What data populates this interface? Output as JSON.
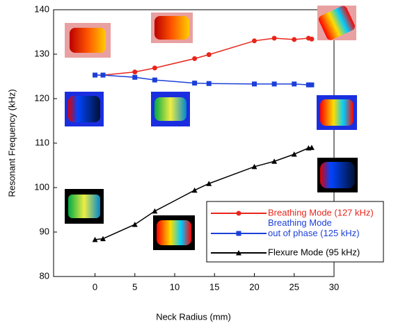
{
  "chart_data": {
    "type": "line",
    "x_label": "Neck Radius (mm)",
    "y_label": "Resonant Frequency (kHz)",
    "x": [
      0,
      1,
      5,
      7.5,
      12.5,
      14.3,
      20,
      22.5,
      25,
      26.8,
      27.2
    ],
    "series": [
      {
        "name": "Breathing Mode (127 kHz)",
        "color": "#e8251b",
        "marker": "circle",
        "values": [
          125.3,
          125.3,
          126,
          126.9,
          129,
          129.9,
          133,
          133.6,
          133.3,
          133.6,
          133.4
        ]
      },
      {
        "name": "Breathing Mode\nout of phase (125 kHz)",
        "color": "#1b3fd8",
        "marker": "square",
        "values": [
          125.3,
          125.3,
          124.8,
          124.2,
          123.5,
          123.4,
          123.3,
          123.3,
          123.3,
          123.1,
          123.1
        ]
      },
      {
        "name": "Flexure Mode (95 kHz)",
        "color": "#000000",
        "marker": "triangle",
        "values": [
          88.3,
          88.5,
          91.7,
          94.7,
          99.4,
          100.9,
          104.7,
          105.9,
          107.5,
          108.9,
          109
        ]
      }
    ],
    "xlim": [
      -5.2,
      30
    ],
    "ylim": [
      80,
      140
    ],
    "xticks": [
      0,
      5,
      10,
      15,
      20,
      25,
      30
    ],
    "yticks": [
      80,
      90,
      100,
      110,
      120,
      130,
      140
    ]
  }
}
